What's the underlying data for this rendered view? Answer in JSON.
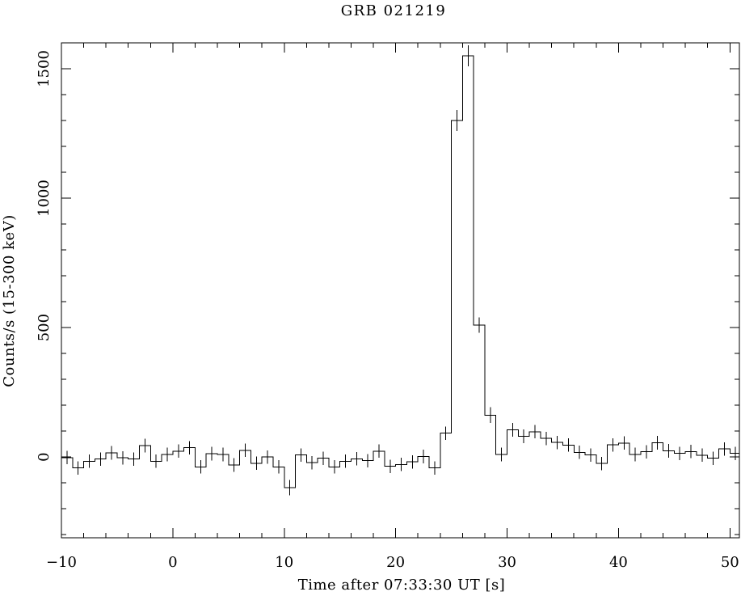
{
  "figure": {
    "background_color": "#ffffff",
    "line_color": "#000000"
  },
  "chart_data": {
    "type": "histogram-step",
    "title": "GRB 021219",
    "xlabel": "Time after 07:33:30 UT [s]",
    "ylabel": "Counts/s (15-300 keV)",
    "xlim": [
      -10,
      50.85
    ],
    "ylim": [
      -312,
      1600
    ],
    "x_major_ticks": [
      -10,
      0,
      10,
      20,
      30,
      40,
      50
    ],
    "x_minor_step": 2,
    "y_major_ticks": [
      0,
      500,
      1000,
      1500
    ],
    "y_minor_step": 100,
    "grid": false,
    "legend": false,
    "bins": {
      "start": -10,
      "width": 1
    },
    "counts_per_s": [
      -2,
      -42,
      -16,
      -8,
      16,
      -3,
      -8,
      44,
      -16,
      10,
      23,
      36,
      -38,
      13,
      10,
      -31,
      26,
      -24,
      0,
      -38,
      -118,
      8,
      -22,
      -5,
      -38,
      -16,
      -7,
      -14,
      23,
      -36,
      -29,
      -19,
      2,
      -42,
      92,
      1300,
      1550,
      510,
      162,
      10,
      105,
      80,
      98,
      72,
      56,
      46,
      18,
      8,
      -25,
      47,
      54,
      10,
      20,
      55,
      24,
      14,
      21,
      7,
      -5,
      31,
      14
    ],
    "error_bars": {
      "default_half_height": 26,
      "overrides": {
        "10": 30,
        "25": 40,
        "26": 40,
        "27": 30,
        "28": 30
      }
    },
    "peak_counts_per_s": 1550,
    "peak_time_s": 26.5
  }
}
